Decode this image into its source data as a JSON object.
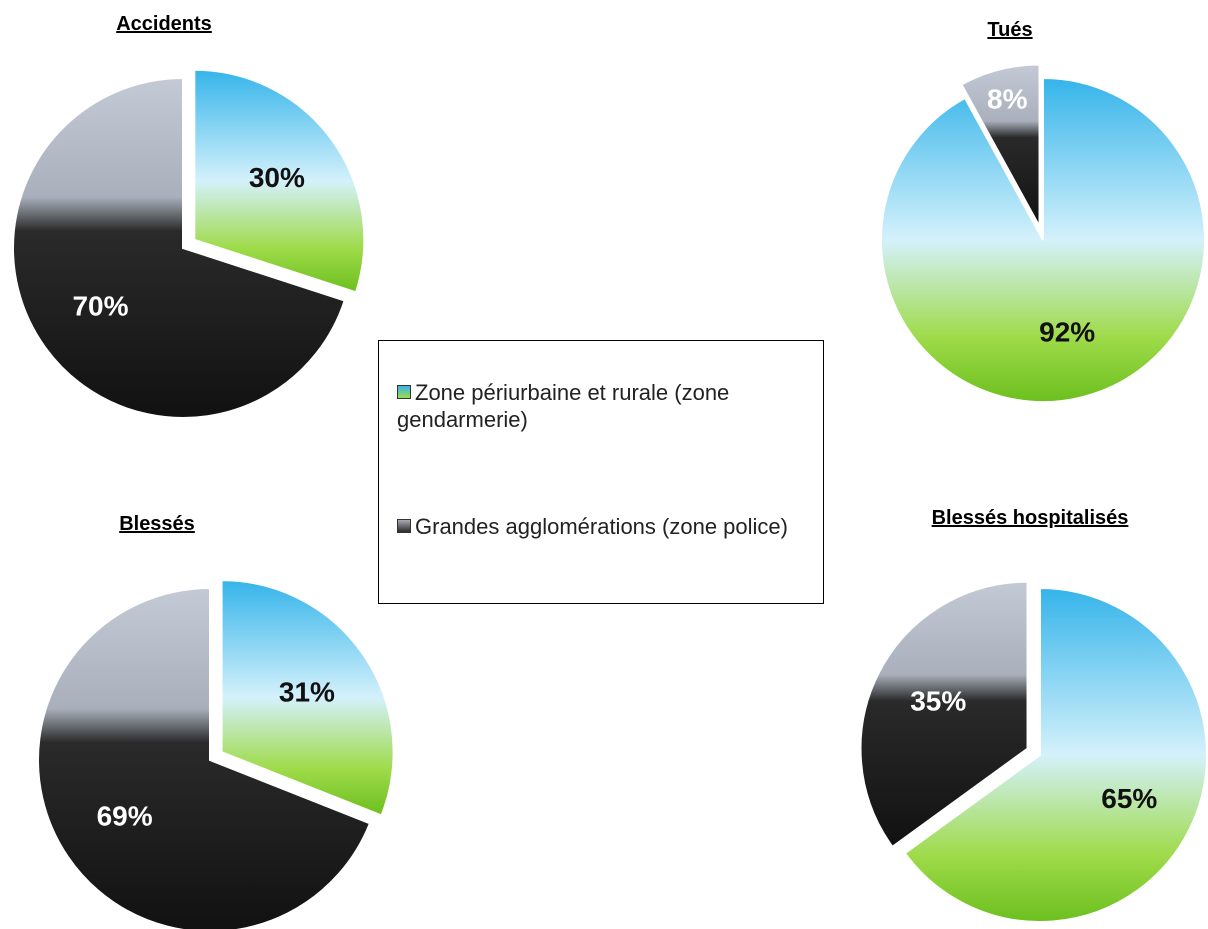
{
  "chart_data": [
    {
      "type": "pie",
      "title": "Accidents",
      "values": [
        30,
        70
      ],
      "value_labels": [
        "30%",
        "70%"
      ]
    },
    {
      "type": "pie",
      "title": "Tués",
      "values": [
        92,
        8
      ],
      "value_labels": [
        "92%",
        "8%"
      ]
    },
    {
      "type": "pie",
      "title": "Blessés",
      "values": [
        31,
        69
      ],
      "value_labels": [
        "31%",
        "69%"
      ]
    },
    {
      "type": "pie",
      "title": "Blessés hospitalisés",
      "values": [
        65,
        35
      ],
      "value_labels": [
        "65%",
        "35%"
      ]
    }
  ],
  "legend": {
    "categories": [
      "Zone périurbaine et rurale (zone gendarmerie)",
      "Grandes agglomérations (zone police)"
    ],
    "colors": [
      "#35b4ea",
      "#2a2a2a"
    ]
  }
}
